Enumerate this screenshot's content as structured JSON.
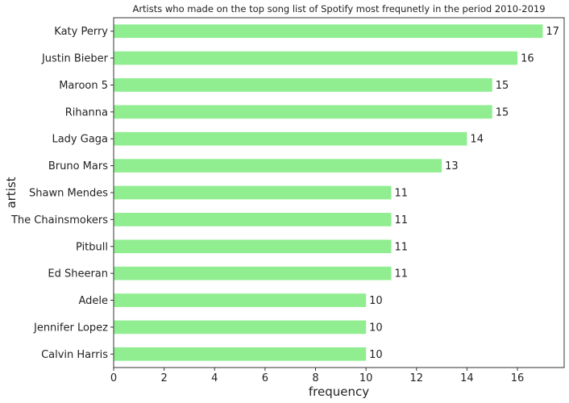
{
  "chart_data": {
    "type": "bar",
    "orientation": "horizontal",
    "title": "Artists who made on the top song list of Spotify most frequnetly in the period 2010-2019",
    "xlabel": "frequency",
    "ylabel": "artist",
    "categories": [
      "Katy Perry",
      "Justin Bieber",
      "Maroon 5",
      "Rihanna",
      "Lady Gaga",
      "Bruno Mars",
      "Shawn Mendes",
      "The Chainsmokers",
      "Pitbull",
      "Ed Sheeran",
      "Adele",
      "Jennifer Lopez",
      "Calvin Harris"
    ],
    "values": [
      17,
      16,
      15,
      15,
      14,
      13,
      11,
      11,
      11,
      11,
      10,
      10,
      10
    ],
    "xlim": [
      0,
      17.85
    ],
    "xticks": [
      0,
      2,
      4,
      6,
      8,
      10,
      12,
      14,
      16
    ],
    "grid": false,
    "bar_color": "#90ee90",
    "data_labels": true
  }
}
